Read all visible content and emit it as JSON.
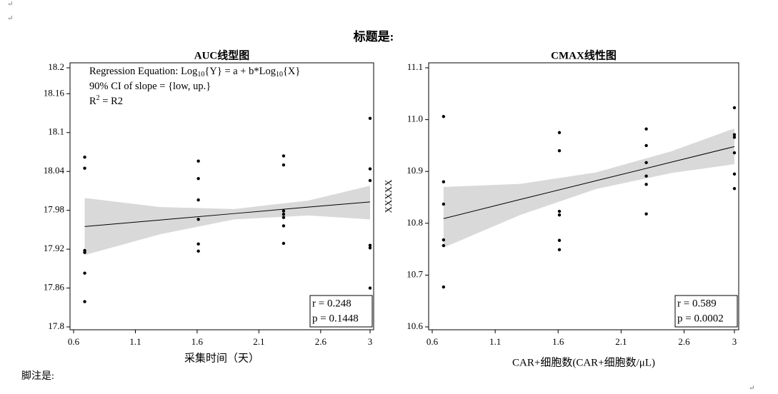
{
  "page": {
    "title": "标题是:",
    "footnote": "脚注是:",
    "marks": [
      "↵",
      "↵",
      "↵"
    ]
  },
  "chart_data": [
    {
      "type": "scatter",
      "title": "AUC线型图",
      "x_label": "采集时间（天）",
      "annotation": [
        [
          {
            "t": "Regression Equation: Log"
          },
          {
            "t": "10",
            "s": "sub"
          },
          {
            "t": "{Y} = a + b*Log"
          },
          {
            "t": "10",
            "s": "sub"
          },
          {
            "t": "{X}"
          }
        ],
        [
          {
            "t": "90% CI of slope = {low, up.}"
          }
        ],
        [
          {
            "t": "R"
          },
          {
            "t": "2",
            "s": "sup"
          },
          {
            "t": " = R2"
          }
        ]
      ],
      "stats": [
        "r = 0.248",
        "p = 0.1448"
      ],
      "color": "#000000",
      "band_color": "#d9d9d9",
      "x": [
        0.69,
        0.69,
        0.69,
        0.69,
        0.69,
        0.69,
        1.61,
        1.61,
        1.61,
        1.61,
        1.61,
        1.61,
        2.3,
        2.3,
        2.3,
        2.3,
        2.3,
        2.3,
        2.3,
        3,
        3,
        3,
        3,
        3,
        3
      ],
      "values": [
        18.062,
        18.045,
        17.918,
        17.915,
        17.883,
        17.839,
        18.056,
        18.029,
        17.996,
        17.966,
        17.928,
        17.917,
        18.064,
        18.05,
        17.979,
        17.974,
        17.969,
        17.956,
        17.929,
        18.122,
        18.044,
        18.026,
        17.926,
        17.922,
        17.86
      ],
      "fit": {
        "x": [
          0.69,
          1.3,
          1.9,
          2.5,
          3
        ],
        "values": [
          17.955,
          17.965,
          17.975,
          17.985,
          17.993
        ],
        "lower": [
          17.911,
          17.943,
          17.966,
          17.972,
          17.966
        ],
        "upper": [
          17.999,
          17.985,
          17.982,
          17.995,
          18.018
        ]
      },
      "xlim": [
        0.6,
        3
      ],
      "xticks": [
        0.6,
        1.1,
        1.6,
        2.1,
        2.6,
        3
      ],
      "ylim": [
        17.8,
        18.2
      ],
      "yticks": [
        17.8,
        17.86,
        17.92,
        17.98,
        18.04,
        18.1,
        18.16,
        18.2
      ]
    },
    {
      "type": "scatter",
      "title": "CMAX线性图",
      "x_label": "CAR+细胞数(CAR+细胞数/μL)",
      "y_label": "XXXXX",
      "stats": [
        "r = 0.589",
        "p = 0.0002"
      ],
      "color": "#000000",
      "band_color": "#d9d9d9",
      "x": [
        0.69,
        0.69,
        0.69,
        0.69,
        0.69,
        0.69,
        1.61,
        1.61,
        1.61,
        1.61,
        1.61,
        1.61,
        2.3,
        2.3,
        2.3,
        2.3,
        2.3,
        2.3,
        3,
        3,
        3,
        3,
        3,
        3
      ],
      "values": [
        11.006,
        10.88,
        10.837,
        10.768,
        10.757,
        10.677,
        10.975,
        10.94,
        10.823,
        10.816,
        10.767,
        10.749,
        10.982,
        10.95,
        10.917,
        10.891,
        10.875,
        10.818,
        11.023,
        10.971,
        10.966,
        10.936,
        10.895,
        10.867
      ],
      "fit": {
        "x": [
          0.69,
          1.3,
          1.9,
          2.5,
          3
        ],
        "values": [
          10.809,
          10.846,
          10.882,
          10.918,
          10.948
        ],
        "lower": [
          10.753,
          10.816,
          10.866,
          10.897,
          10.914
        ],
        "upper": [
          10.87,
          10.876,
          10.898,
          10.939,
          10.983
        ]
      },
      "xlim": [
        0.6,
        3
      ],
      "xticks": [
        0.6,
        1.1,
        1.6,
        2.1,
        2.6,
        3
      ],
      "ylim": [
        10.6,
        11.1
      ],
      "yticks": [
        10.6,
        10.7,
        10.8,
        10.9,
        {
          "value": 11,
          "label": "11.0"
        },
        11.1
      ]
    }
  ]
}
